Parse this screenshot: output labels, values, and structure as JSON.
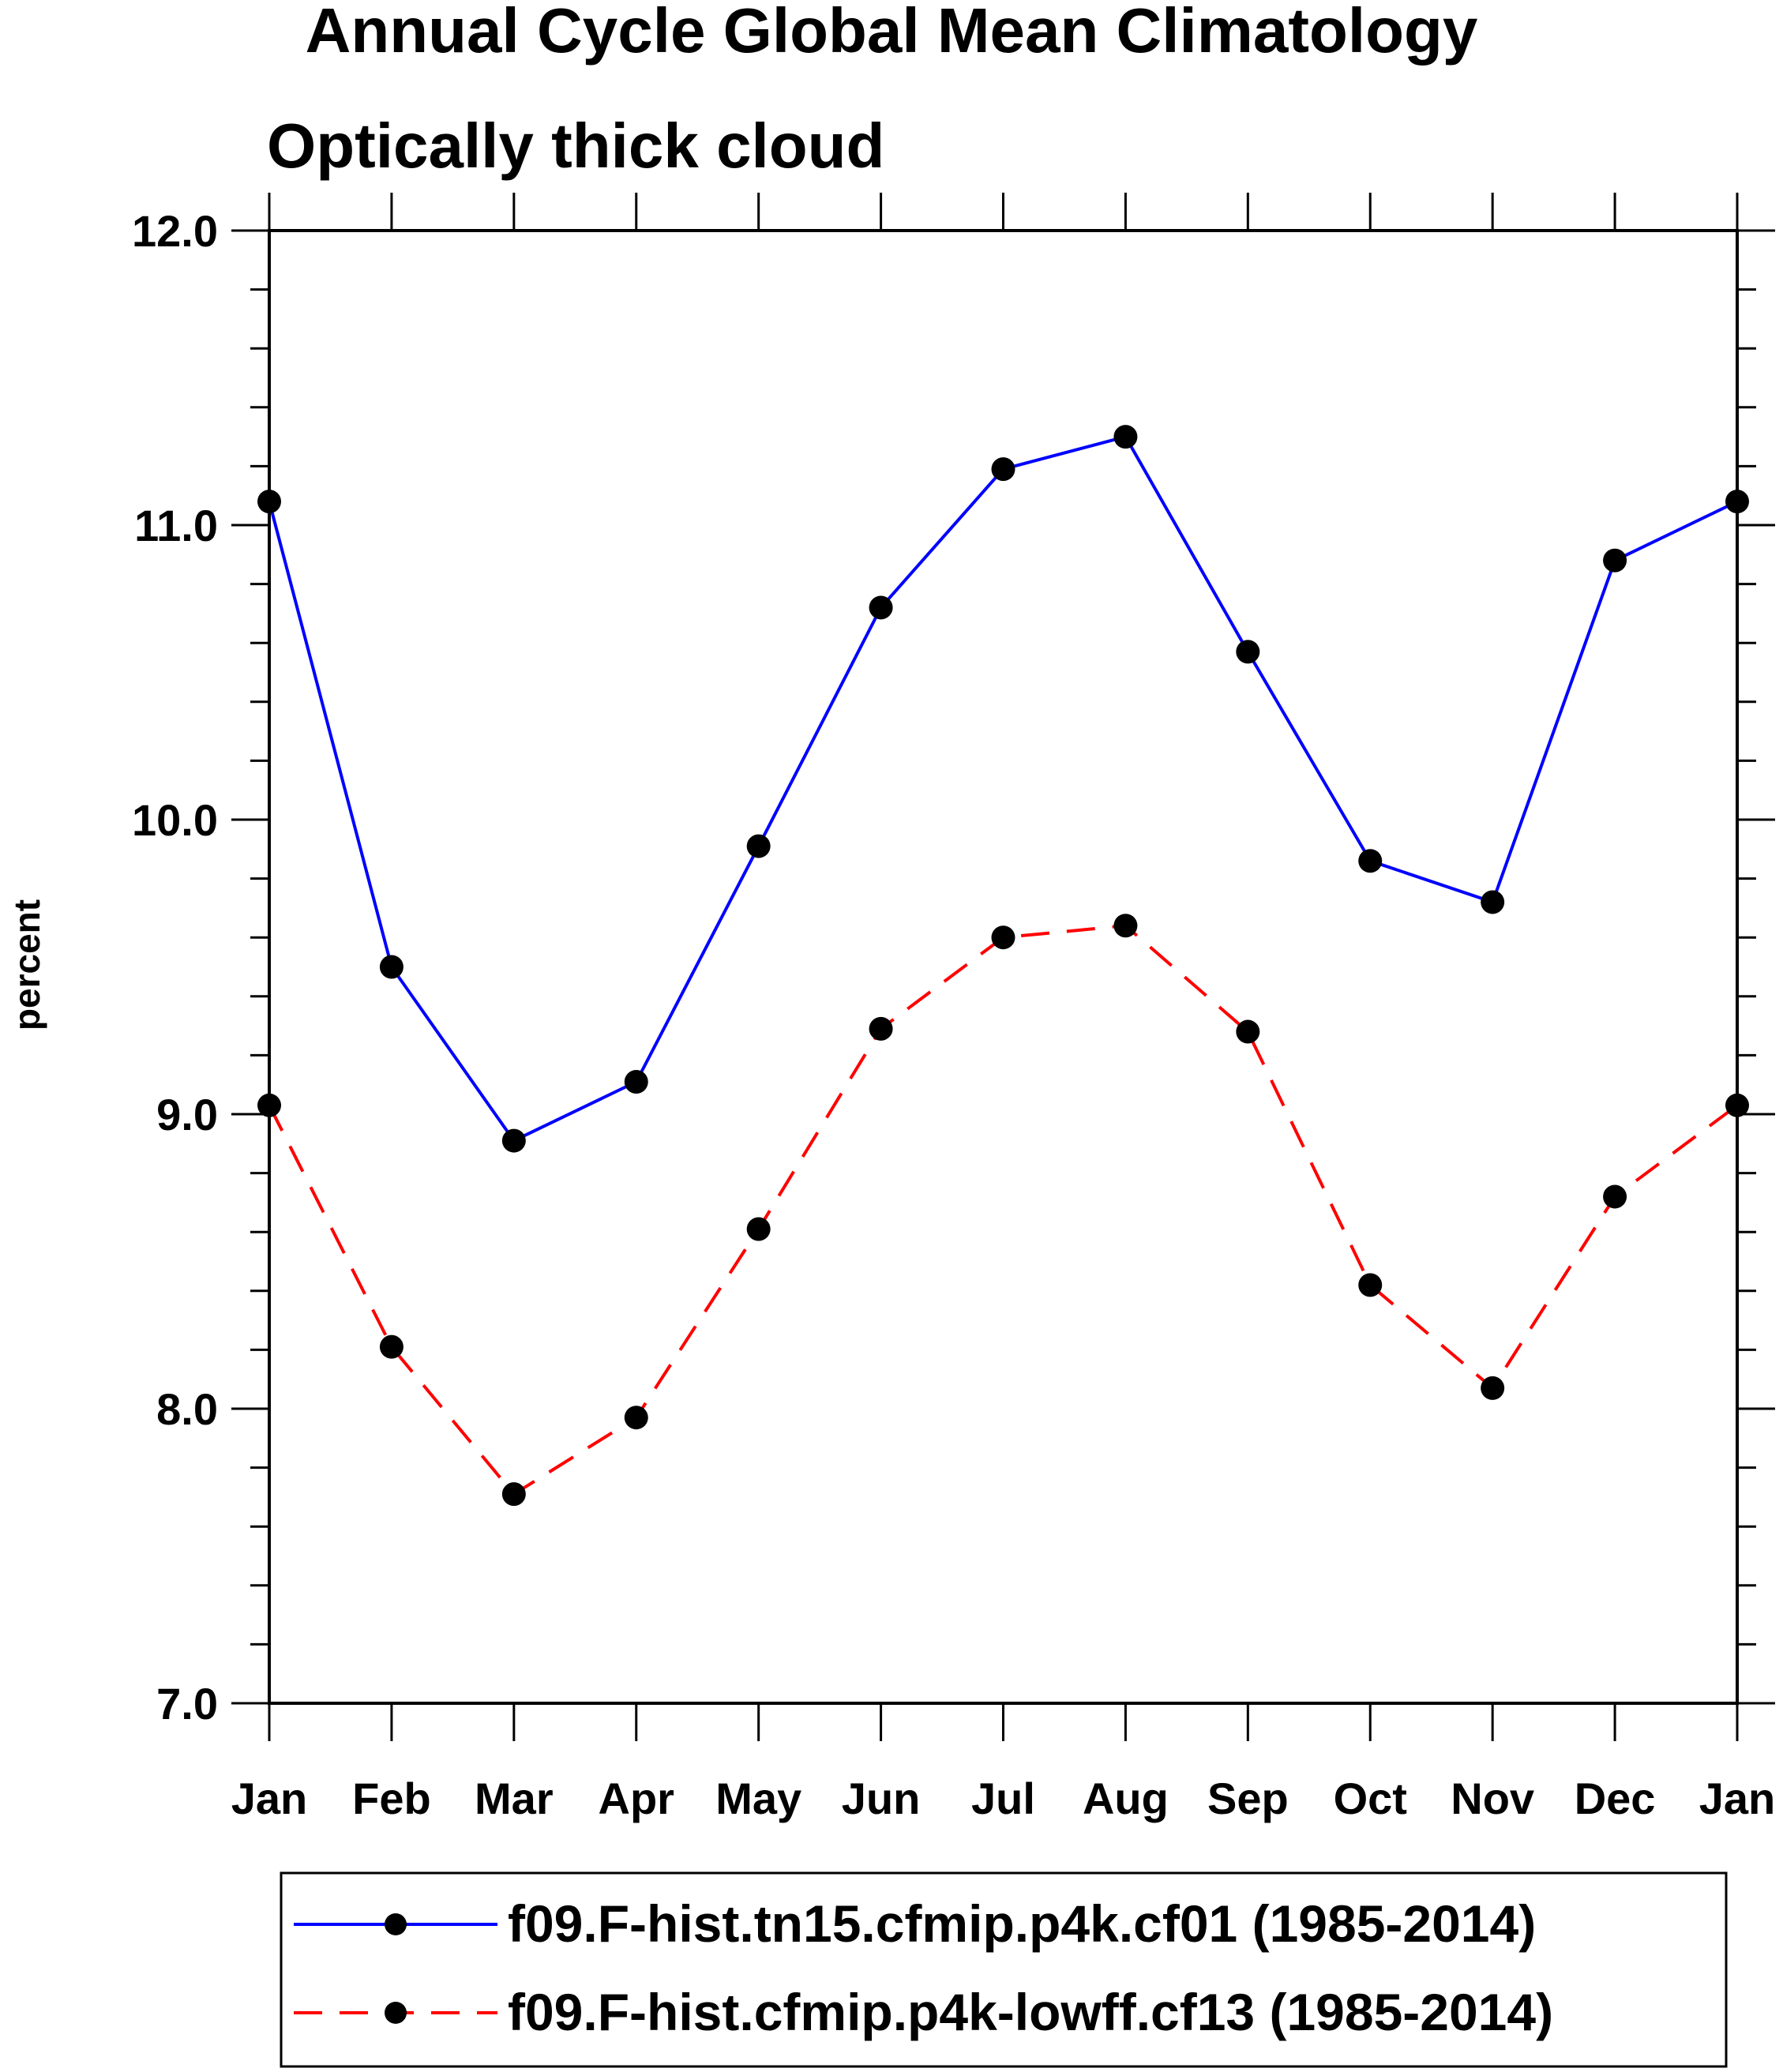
{
  "chart_data": {
    "type": "line",
    "title": "Annual Cycle Global Mean Climatology",
    "subtitle": "Optically thick cloud",
    "xlabel": "",
    "ylabel": "percent",
    "categories": [
      "Jan",
      "Feb",
      "Mar",
      "Apr",
      "May",
      "Jun",
      "Jul",
      "Aug",
      "Sep",
      "Oct",
      "Nov",
      "Dec",
      "Jan"
    ],
    "ylim": [
      7.0,
      12.0
    ],
    "yticks": [
      "7.0",
      "8.0",
      "9.0",
      "10.0",
      "11.0",
      "12.0"
    ],
    "grid": false,
    "legend_position": "bottom",
    "series": [
      {
        "name": "f09.F-hist.tn15.cfmip.p4k.cf01 (1985-2014)",
        "color": "#0000ff",
        "style": "solid",
        "values": [
          11.08,
          9.5,
          8.91,
          9.11,
          9.91,
          10.72,
          11.19,
          11.3,
          10.57,
          9.86,
          9.72,
          10.88,
          11.08
        ]
      },
      {
        "name": "f09.F-hist.cfmip.p4k-lowff.cf13 (1985-2014)",
        "color": "#ff0000",
        "style": "dashed",
        "values": [
          9.03,
          8.21,
          7.71,
          7.97,
          8.61,
          9.29,
          9.6,
          9.64,
          9.28,
          8.42,
          8.07,
          8.72,
          9.03
        ]
      }
    ]
  }
}
